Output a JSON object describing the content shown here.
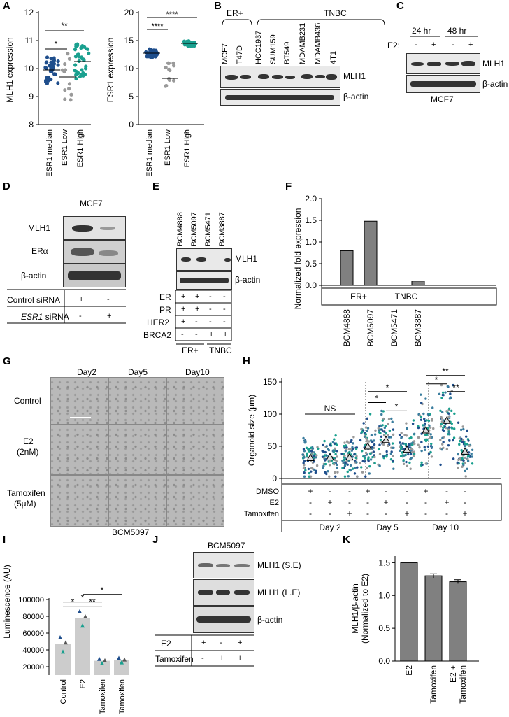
{
  "panels": {
    "A": "A",
    "B": "B",
    "C": "C",
    "D": "D",
    "E": "E",
    "F": "F",
    "G": "G",
    "H": "H",
    "I": "I",
    "J": "J",
    "K": "K"
  },
  "A": {
    "left": {
      "ylabel": "MLH1 expression",
      "yticks": [
        "8",
        "9",
        "10",
        "11",
        "12"
      ],
      "categories": [
        "ESR1 median",
        "ESR1 Low",
        "ESR1 High"
      ],
      "sig": [
        "*",
        "**"
      ]
    },
    "right": {
      "ylabel": "ESR1 expression",
      "yticks": [
        "0",
        "5",
        "10",
        "15",
        "20"
      ],
      "categories": [
        "ESR1 median",
        "ESR1 Low",
        "ESR1 High"
      ],
      "sig": [
        "****",
        "****"
      ]
    }
  },
  "B": {
    "groups": [
      "ER+",
      "TNBC"
    ],
    "lanes": [
      "MCF7",
      "T47D",
      "HCC1937",
      "SUM159",
      "BT549",
      "MDAMB231",
      "MDAMB436",
      "4T1"
    ],
    "rows": [
      "MLH1",
      "β-actin"
    ]
  },
  "C": {
    "times": [
      "24 hr",
      "48 hr"
    ],
    "e2_label": "E2:",
    "signs": [
      "-",
      "+",
      "-",
      "+"
    ],
    "rows": [
      "MLH1",
      "β-actin"
    ],
    "cell": "MCF7"
  },
  "D": {
    "cell": "MCF7",
    "rows": [
      "MLH1",
      "ERα",
      "β-actin"
    ],
    "conditions": [
      {
        "label": "Control siRNA",
        "signs": [
          "+",
          "-"
        ]
      },
      {
        "label_italic": "ESR1",
        "label_rest": " siRNA",
        "signs": [
          "-",
          "+"
        ]
      }
    ]
  },
  "E": {
    "lanes": [
      "BCM4888",
      "BCM5097",
      "BCM5471",
      "BCM3887"
    ],
    "rows": [
      "MLH1",
      "β-actin"
    ],
    "markers": [
      {
        "label": "ER",
        "signs": [
          "+",
          "+",
          "-",
          "-"
        ]
      },
      {
        "label": "PR",
        "signs": [
          "+",
          "+",
          "-",
          "-"
        ]
      },
      {
        "label": "HER2",
        "signs": [
          "+",
          "-",
          "-",
          "-"
        ]
      },
      {
        "label": "BRCA2",
        "signs": [
          "-",
          "-",
          "+",
          "+"
        ]
      }
    ],
    "groups": [
      "ER+",
      "TNBC"
    ]
  },
  "G": {
    "days": [
      "Day2",
      "Day5",
      "Day10"
    ],
    "rows": [
      "Control",
      "E2",
      "Tamoxifen"
    ],
    "row_sub": [
      "",
      "(2nM)",
      "(5μM)"
    ],
    "caption": "BCM5097"
  },
  "H": {
    "ylabel": "Organoid size (μm)",
    "yticks": [
      "0",
      "50",
      "100",
      "150"
    ],
    "ns": "NS",
    "treatments": [
      {
        "label": "DMSO",
        "signs": [
          "+",
          "-",
          "-",
          "+",
          "-",
          "-",
          "+",
          "-",
          "-"
        ]
      },
      {
        "label": "E2",
        "signs": [
          "-",
          "+",
          "-",
          "-",
          "+",
          "-",
          "-",
          "+",
          "-"
        ]
      },
      {
        "label": "Tamoxifen",
        "signs": [
          "-",
          "-",
          "+",
          "-",
          "-",
          "+",
          "-",
          "-",
          "+"
        ]
      }
    ],
    "days": [
      "Day 2",
      "Day 5",
      "Day 10"
    ],
    "sig": [
      "*",
      "*",
      "*",
      "*",
      "*",
      "**",
      "**"
    ]
  },
  "I": {
    "ylabel": "Luminescence (AU)",
    "yticks": [
      "20000",
      "40000",
      "60000",
      "80000",
      "100000"
    ],
    "categories": [
      "Control",
      "E2",
      "Tamoxifen",
      "E2 + Tamoxifen"
    ],
    "sig": [
      "*",
      "*",
      "**",
      "*"
    ]
  },
  "J": {
    "cell": "BCM5097",
    "rows": [
      "MLH1 (S.E)",
      "MLH1 (L.E)",
      "β-actin"
    ],
    "conditions": [
      {
        "label": "E2",
        "signs": [
          "+",
          "-",
          "+"
        ]
      },
      {
        "label": "Tamoxifen",
        "signs": [
          "-",
          "+",
          "+"
        ]
      }
    ]
  },
  "chart_data": [
    {
      "id": "F",
      "type": "bar",
      "categories": [
        "BCM4888",
        "BCM5097",
        "BCM5471",
        "BCM3887"
      ],
      "values": [
        0.8,
        1.48,
        0.0,
        0.1
      ],
      "ylabel": "Normalized fold expression",
      "yticks": [
        "0.0",
        "0.5",
        "1.0",
        "1.5",
        "2.0"
      ],
      "ylim": [
        0,
        2.0
      ],
      "groups": [
        "ER+",
        "TNBC"
      ],
      "bar_color": "#808080"
    },
    {
      "id": "I",
      "type": "bar",
      "categories": [
        "Control",
        "E2",
        "Tamoxifen",
        "E2 + Tamoxifen"
      ],
      "values": [
        47000,
        78000,
        27000,
        28000
      ],
      "ylim": [
        10000,
        110000
      ],
      "bar_color": "#cccccc"
    },
    {
      "id": "K",
      "type": "bar",
      "categories": [
        "E2",
        "Tamoxifen",
        "E2 + Tamoxifen"
      ],
      "values": [
        1.5,
        1.3,
        1.21
      ],
      "errors": [
        0.0,
        0.03,
        0.03
      ],
      "ylabel": "MLH1/β-actin (Normalized to E2)",
      "yticks": [
        "0.0",
        "0.5",
        "1.0",
        "1.5"
      ],
      "ylim": [
        0,
        1.6
      ],
      "bar_color": "#808080"
    }
  ]
}
